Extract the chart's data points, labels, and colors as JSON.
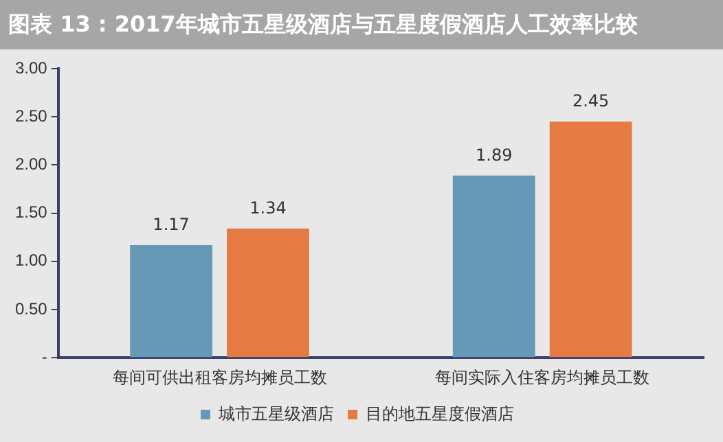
{
  "chart_data": {
    "type": "bar",
    "title": "图表 13 : 2017年城市五星级酒店与五星度假酒店人工效率比较",
    "categories": [
      "每间可供出租客房均摊员工数",
      "每间实际入住客房均摊员工数"
    ],
    "series": [
      {
        "name": "城市五星级酒店",
        "color": "#6599b5",
        "values": [
          1.17,
          1.89
        ]
      },
      {
        "name": "目的地五星度假酒店",
        "color": "#e57b42",
        "values": [
          1.34,
          2.45
        ]
      }
    ],
    "ylim": [
      0,
      3
    ],
    "yticks": [
      {
        "value": 0,
        "label": "-"
      },
      {
        "value": 0.5,
        "label": "0.50"
      },
      {
        "value": 1,
        "label": "1.00"
      },
      {
        "value": 1.5,
        "label": "1.50"
      },
      {
        "value": 2,
        "label": "2.00"
      },
      {
        "value": 2.5,
        "label": "2.50"
      },
      {
        "value": 3,
        "label": "3.00"
      }
    ],
    "grid": false,
    "legend": "bottom",
    "data_labels": true
  }
}
